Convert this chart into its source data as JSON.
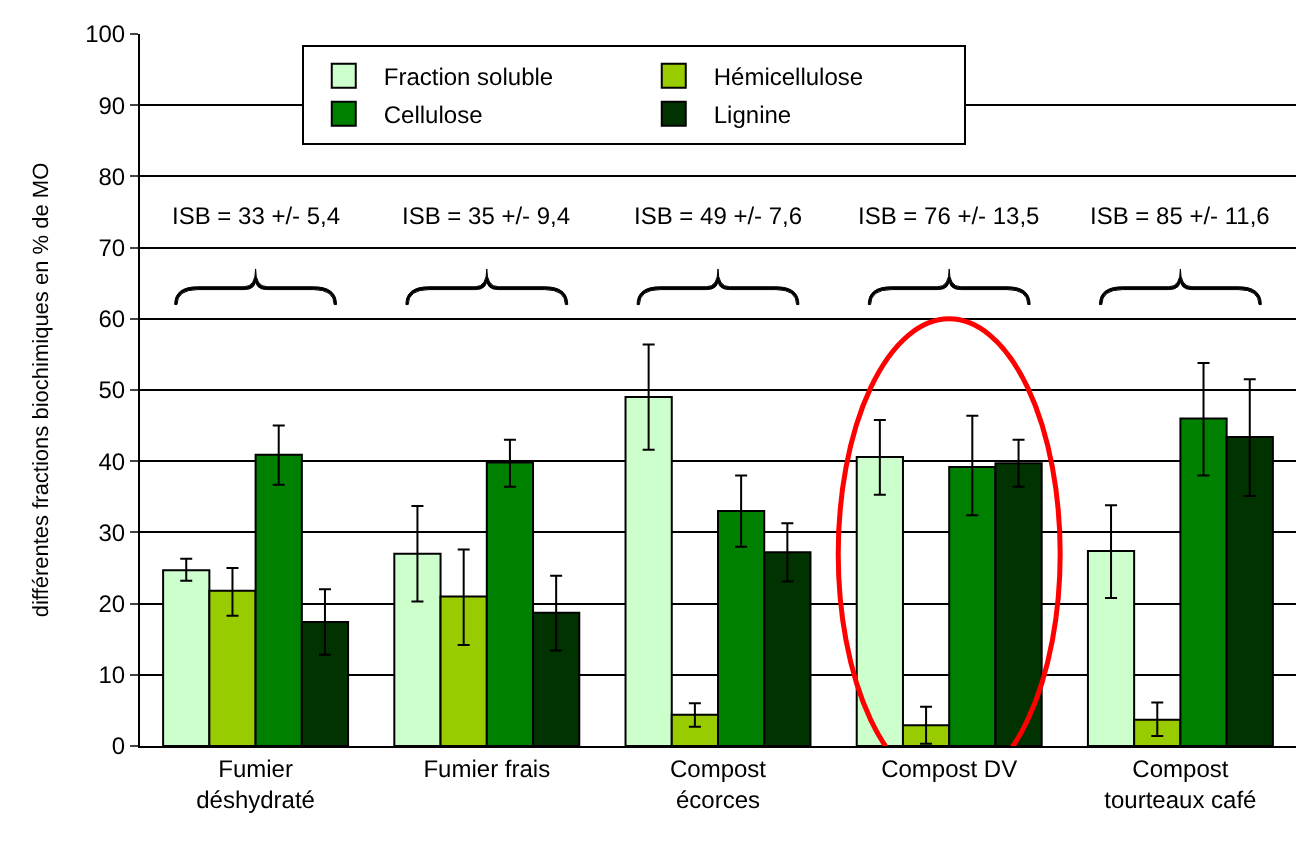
{
  "chart_data": {
    "type": "bar",
    "ylabel": "différentes fractions biochimiques en % de MO",
    "categories": [
      "Fumier\ndéshydraté",
      "Fumier frais",
      "Compost\nécorces",
      "Compost DV",
      "Compost\ntourteaux café"
    ],
    "series": [
      {
        "name": "Fraction soluble",
        "color": "#ccffcc",
        "values": [
          24.7,
          27,
          49,
          40.6,
          27.4
        ],
        "errors": [
          [
            23.2,
            26.3
          ],
          [
            20.3,
            33.7
          ],
          [
            41.6,
            56.4
          ],
          [
            35.3,
            45.8
          ],
          [
            20.8,
            33.8
          ]
        ]
      },
      {
        "name": "Hémicellulose",
        "color": "#99cc00",
        "values": [
          21.8,
          21,
          4.4,
          2.9,
          3.7
        ],
        "errors": [
          [
            18.3,
            25
          ],
          [
            14.2,
            27.6
          ],
          [
            2.7,
            6
          ],
          [
            0.3,
            5.5
          ],
          [
            1.4,
            6.1
          ]
        ]
      },
      {
        "name": "Cellulose",
        "color": "#008000",
        "values": [
          40.9,
          39.8,
          33,
          39.2,
          46
        ],
        "errors": [
          [
            36.7,
            45
          ],
          [
            36.4,
            43
          ],
          [
            28,
            38
          ],
          [
            32.4,
            46.4
          ],
          [
            38,
            53.8
          ]
        ]
      },
      {
        "name": "Lignine",
        "color": "#003300",
        "values": [
          17.4,
          18.7,
          27.2,
          39.7,
          43.4
        ],
        "errors": [
          [
            12.8,
            22
          ],
          [
            13.4,
            23.9
          ],
          [
            23.1,
            31.3
          ],
          [
            36.4,
            43
          ],
          [
            35.1,
            51.5
          ]
        ]
      }
    ],
    "annotations": [
      "ISB = 33 +/- 5,4",
      "ISB = 35 +/- 9,4",
      "ISB = 49 +/- 7,6",
      "ISB = 76 +/- 13,5",
      "ISB = 85 +/- 11,6"
    ],
    "ylim": [
      0,
      100
    ],
    "yticks": [
      0,
      10,
      20,
      30,
      40,
      50,
      60,
      70,
      80,
      90,
      100
    ],
    "grid": "y",
    "legend": "top"
  }
}
